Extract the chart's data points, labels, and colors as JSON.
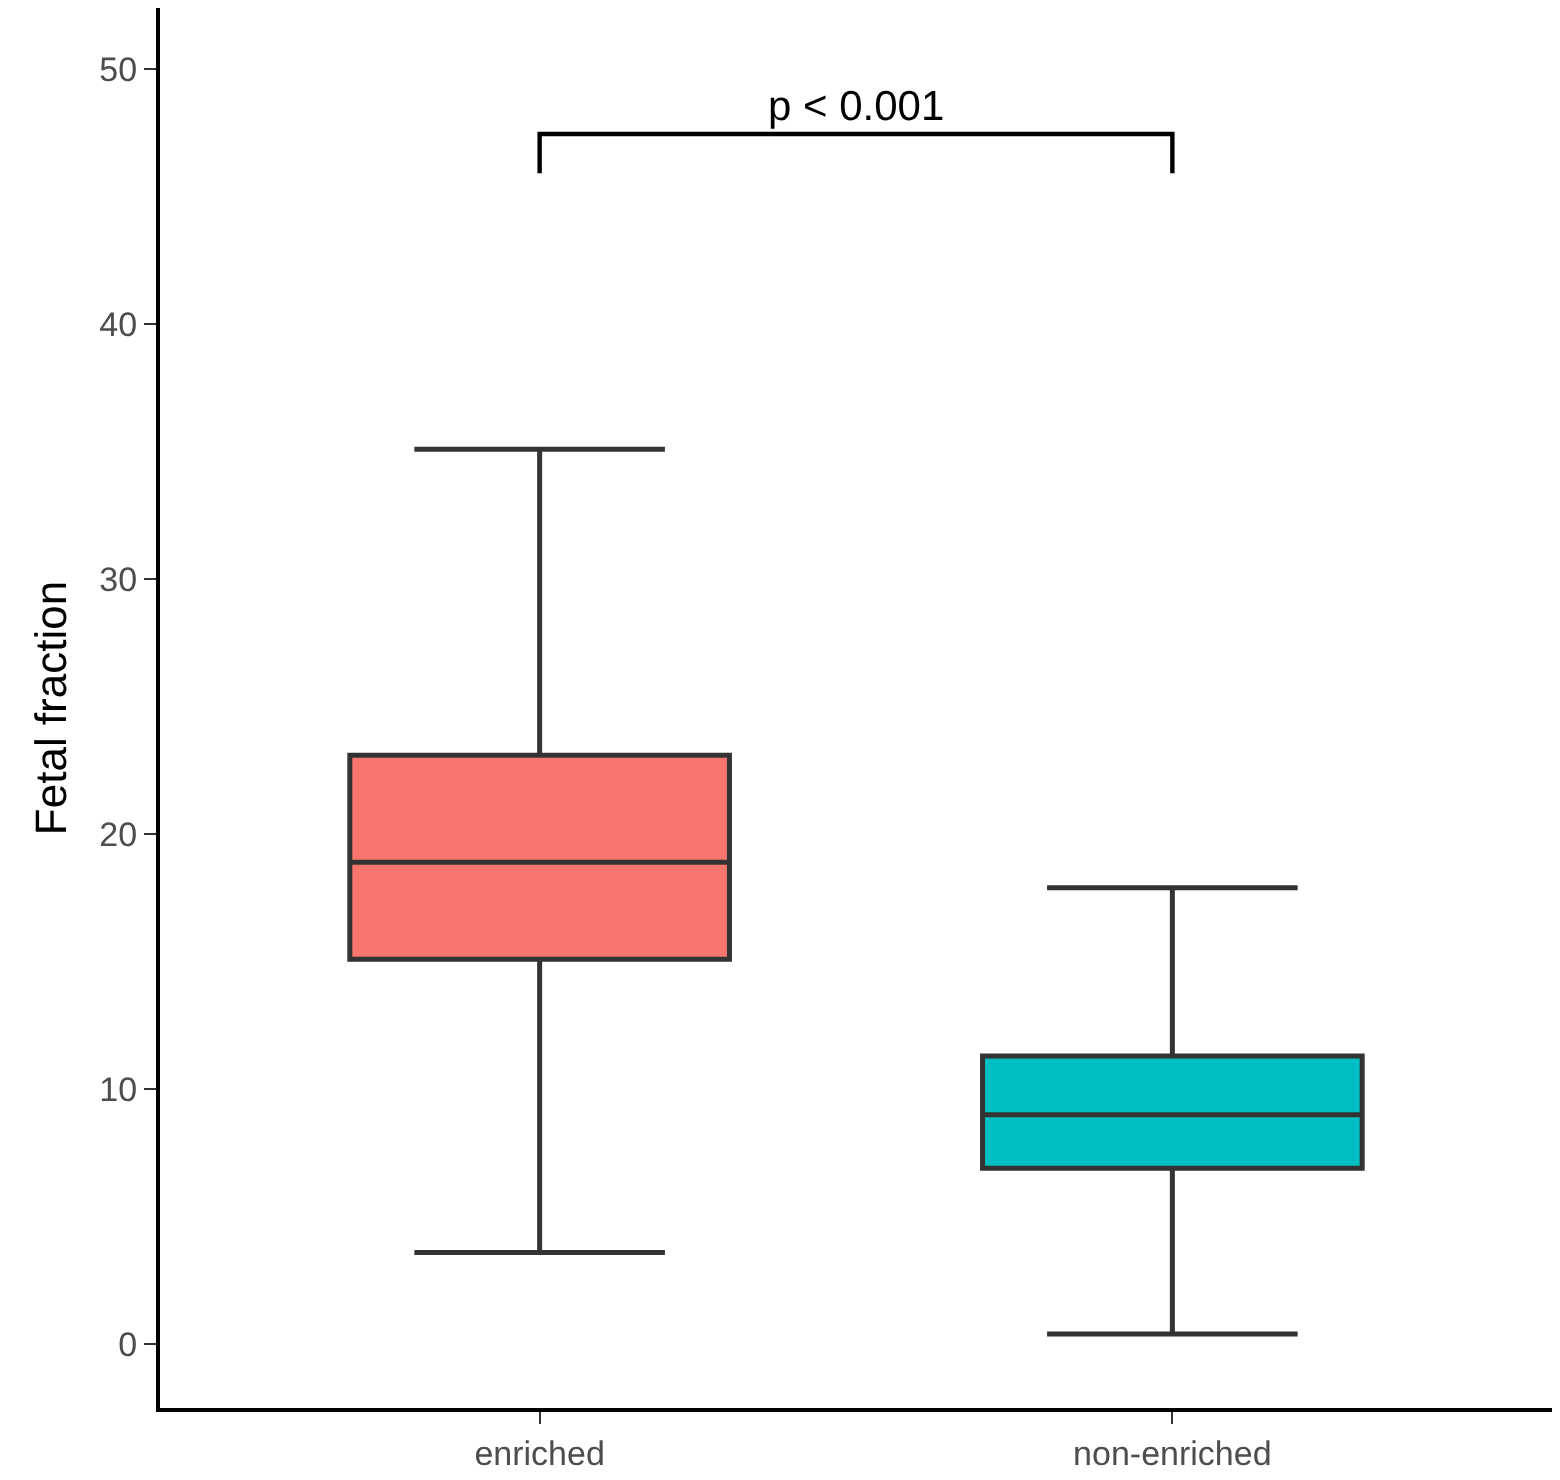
{
  "chart_data": {
    "type": "box",
    "ylabel": "Fetal fraction",
    "categories": [
      "enriched",
      "non-enriched"
    ],
    "colors": [
      "#f8766d",
      "#00bfc4"
    ],
    "boxes": [
      {
        "low": 3.6,
        "q1": 15.1,
        "median": 18.9,
        "q3": 23.1,
        "high": 35.1
      },
      {
        "low": 0.4,
        "q1": 6.9,
        "median": 9.0,
        "q3": 11.3,
        "high": 17.9
      }
    ],
    "ylim": [
      -2.5,
      52.4
    ],
    "yticks": [
      0,
      10,
      20,
      30,
      40,
      50
    ],
    "annotations": [
      "p < 0.001"
    ],
    "grid": false
  }
}
